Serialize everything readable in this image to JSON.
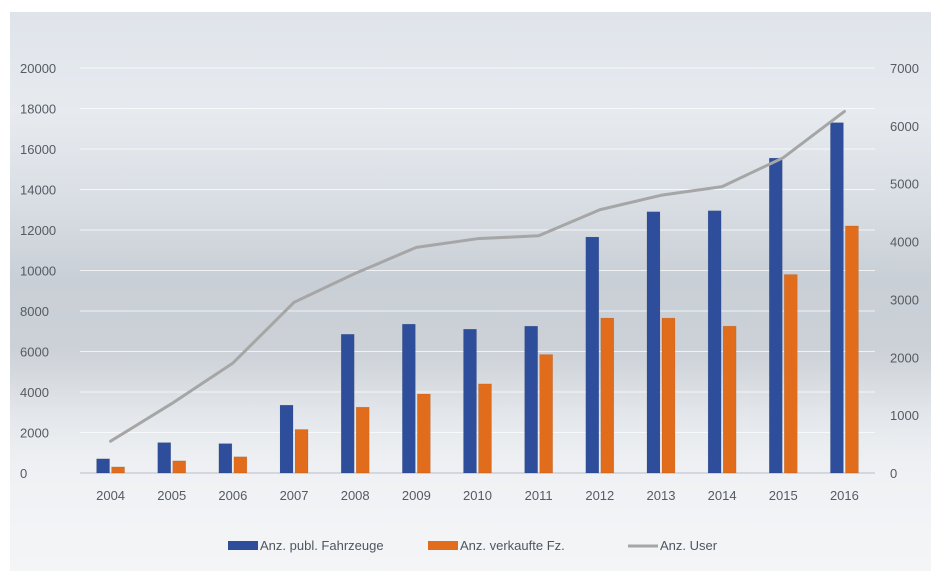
{
  "chart_data": {
    "type": "bar",
    "categories": [
      "2004",
      "2005",
      "2006",
      "2007",
      "2008",
      "2009",
      "2010",
      "2011",
      "2012",
      "2013",
      "2014",
      "2015",
      "2016"
    ],
    "series": [
      {
        "name": "Anz. publ. Fahrzeuge",
        "type": "bar",
        "axis": "left",
        "color": "#2e4e9c",
        "values": [
          700,
          1500,
          1450,
          3350,
          6850,
          7350,
          7100,
          7250,
          11650,
          12900,
          12950,
          15550,
          17300
        ]
      },
      {
        "name": "Anz. verkaufte Fz.",
        "type": "bar",
        "axis": "left",
        "color": "#e06c1c",
        "values": [
          300,
          600,
          800,
          2150,
          3250,
          3900,
          4400,
          5850,
          7650,
          7650,
          7250,
          9800,
          12200
        ]
      },
      {
        "name": "Anz. User",
        "type": "line",
        "axis": "right",
        "color": "#a6a6a6",
        "values": [
          550,
          1200,
          1900,
          2950,
          3450,
          3900,
          4050,
          4100,
          4550,
          4800,
          4950,
          5450,
          6250
        ]
      }
    ],
    "yleft": {
      "ticks": [
        "0",
        "2000",
        "4000",
        "6000",
        "8000",
        "10000",
        "12000",
        "14000",
        "16000",
        "18000",
        "20000"
      ],
      "lim": [
        0,
        20000
      ]
    },
    "yright": {
      "ticks": [
        "0",
        "1000",
        "2000",
        "3000",
        "4000",
        "5000",
        "6000",
        "7000"
      ],
      "lim": [
        0,
        7000
      ]
    },
    "grid": true,
    "legend": "bottom-center"
  }
}
